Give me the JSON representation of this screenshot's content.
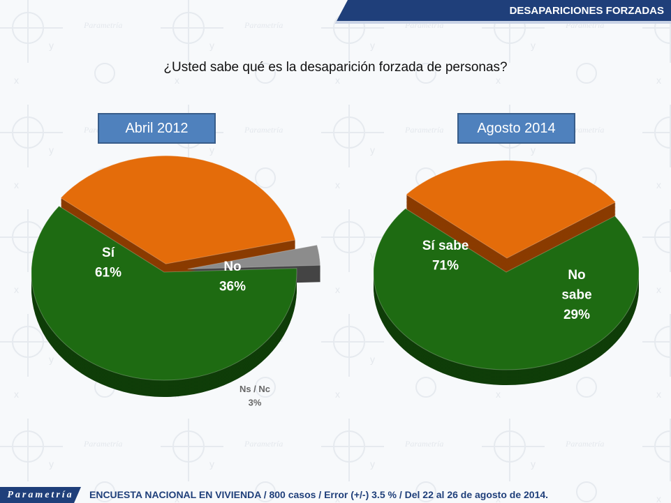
{
  "header": {
    "title": "DESAPARICIONES FORZADAS"
  },
  "question": "¿Usted sabe qué es la desaparición forzada de personas?",
  "footer": {
    "logo": "Parametría",
    "text": "ENCUESTA NACIONAL EN VIVIENDA / 800 casos / Error (+/-) 3.5 % / Del 22 al 26 de agosto de 2014."
  },
  "colors": {
    "yes": "#1e6b12",
    "no": "#e46c0a",
    "ns": "#8c8c8c",
    "header": "#1f3f7a",
    "box": "#4f81bd"
  },
  "chart_data": [
    {
      "type": "pie",
      "title": "Abril 2012",
      "slices": [
        {
          "label": "Sí",
          "value": 61,
          "display": "61%"
        },
        {
          "label": "No",
          "value": 36,
          "display": "36%"
        },
        {
          "label": "Ns / Nc",
          "value": 3,
          "display": "3%"
        }
      ]
    },
    {
      "type": "pie",
      "title": "Agosto 2014",
      "slices": [
        {
          "label": "Sí sabe",
          "value": 71,
          "display": "71%"
        },
        {
          "label": "No sabe",
          "value": 29,
          "display": "29%"
        }
      ]
    }
  ]
}
